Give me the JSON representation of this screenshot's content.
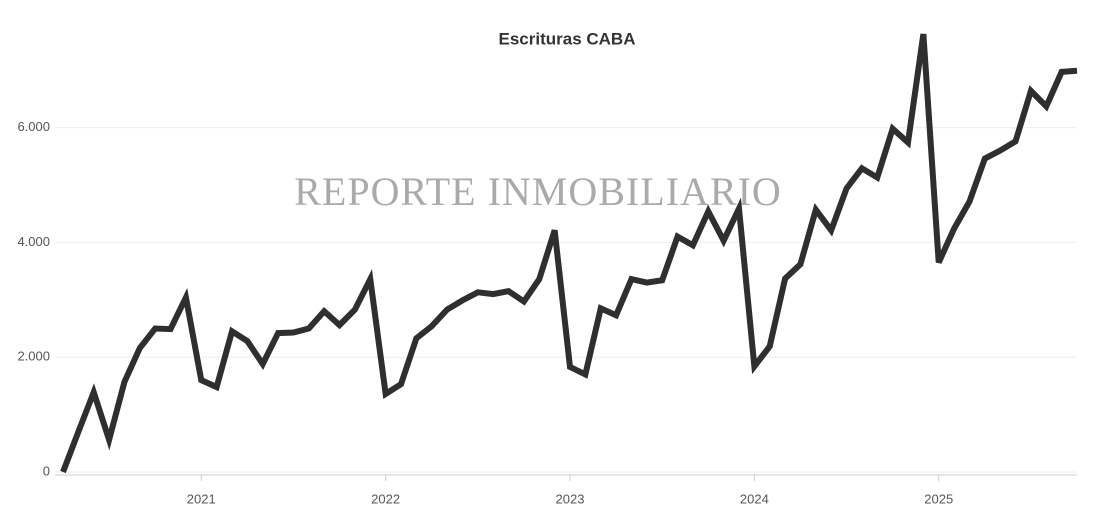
{
  "chart_data": {
    "type": "line",
    "title": "Escrituras CABA",
    "watermark": "REPORTE INMOBILIARIO",
    "x": [
      "2020-04",
      "2020-05",
      "2020-06",
      "2020-07",
      "2020-08",
      "2020-09",
      "2020-10",
      "2020-11",
      "2020-12",
      "2021-01",
      "2021-02",
      "2021-03",
      "2021-04",
      "2021-05",
      "2021-06",
      "2021-07",
      "2021-08",
      "2021-09",
      "2021-10",
      "2021-11",
      "2021-12",
      "2022-01",
      "2022-02",
      "2022-03",
      "2022-04",
      "2022-05",
      "2022-06",
      "2022-07",
      "2022-08",
      "2022-09",
      "2022-10",
      "2022-11",
      "2022-12",
      "2023-01",
      "2023-02",
      "2023-03",
      "2023-04",
      "2023-05",
      "2023-06",
      "2023-07",
      "2023-08",
      "2023-09",
      "2023-10",
      "2023-11",
      "2023-12",
      "2024-01",
      "2024-02",
      "2024-03",
      "2024-04",
      "2024-05",
      "2024-06",
      "2024-07",
      "2024-08",
      "2024-09",
      "2024-10",
      "2024-11",
      "2024-12",
      "2025-01",
      "2025-02",
      "2025-03",
      "2025-04",
      "2025-05",
      "2025-06",
      "2025-07",
      "2025-08",
      "2025-09",
      "2025-10"
    ],
    "series": [
      {
        "name": "Escrituras",
        "color": "#2f2f2f",
        "values": [
          0,
          700,
          1390,
          560,
          1570,
          2160,
          2500,
          2490,
          3040,
          1600,
          1480,
          2450,
          2280,
          1880,
          2420,
          2430,
          2500,
          2800,
          2560,
          2830,
          3360,
          1360,
          1530,
          2330,
          2540,
          2830,
          2990,
          3130,
          3100,
          3150,
          2970,
          3360,
          4210,
          1830,
          1700,
          2850,
          2730,
          3360,
          3300,
          3340,
          4100,
          3950,
          4540,
          4030,
          4590,
          1840,
          2190,
          3370,
          3620,
          4570,
          4210,
          4940,
          5290,
          5130,
          5980,
          5740,
          7630,
          3650,
          4240,
          4710,
          5460,
          5600,
          5760,
          6640,
          6370,
          6970,
          6990
        ]
      }
    ],
    "xlim": [
      "2020-04",
      "2025-10"
    ],
    "xticks": [
      {
        "value": "2021-01",
        "label": "2021"
      },
      {
        "value": "2022-01",
        "label": "2022"
      },
      {
        "value": "2023-01",
        "label": "2023"
      },
      {
        "value": "2024-01",
        "label": "2024"
      },
      {
        "value": "2025-01",
        "label": "2025"
      }
    ],
    "ylim": [
      0,
      7700
    ],
    "yticks": [
      0,
      {
        "value": 2000,
        "label": "2.000"
      },
      {
        "value": 4000,
        "label": "4.000"
      },
      {
        "value": 6000,
        "label": "6.000"
      }
    ],
    "grid": true
  }
}
